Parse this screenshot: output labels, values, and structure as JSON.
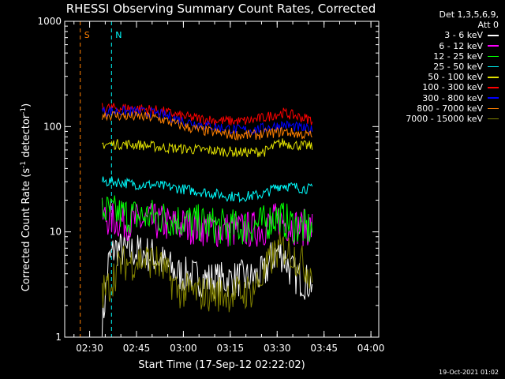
{
  "chart_data": {
    "type": "line",
    "title": "RHESSI Observing Summary Count Rates, Corrected",
    "xlabel": "Start Time (17-Sep-12 02:22:02)",
    "ylabel_main": "Corrected Count Rate (s",
    "ylabel_mid": " detector",
    "ylabel_exp": "-1",
    "ylabel_end": ")",
    "yscale": "log",
    "ylim": [
      1,
      1000
    ],
    "xlim_minutes": [
      142.03,
      242.5
    ],
    "x_ticks": [
      {
        "label": "02:30",
        "minute": 150
      },
      {
        "label": "02:45",
        "minute": 165
      },
      {
        "label": "03:00",
        "minute": 180
      },
      {
        "label": "03:15",
        "minute": 195
      },
      {
        "label": "03:30",
        "minute": 210
      },
      {
        "label": "03:45",
        "minute": 225
      },
      {
        "label": "04:00",
        "minute": 240
      }
    ],
    "y_ticks": [
      {
        "label": "1",
        "value": 1
      },
      {
        "label": "10",
        "value": 10
      },
      {
        "label": "100",
        "value": 100
      },
      {
        "label": "1000",
        "value": 1000
      }
    ],
    "legend_header": [
      "Det 1,3,5,6,9,",
      "Att 0"
    ],
    "series": [
      {
        "name": "3 - 6 keV",
        "color": "#ffffff",
        "points": [
          [
            154,
            1.2
          ],
          [
            156,
            5
          ],
          [
            158,
            7
          ],
          [
            162,
            6.5
          ],
          [
            166,
            6.5
          ],
          [
            170,
            6
          ],
          [
            174,
            5
          ],
          [
            178,
            4
          ],
          [
            182,
            3.8
          ],
          [
            186,
            3.6
          ],
          [
            190,
            3.5
          ],
          [
            194,
            3.5
          ],
          [
            198,
            3.6
          ],
          [
            202,
            3.6
          ],
          [
            206,
            4
          ],
          [
            208,
            5.5
          ],
          [
            210,
            6.5
          ],
          [
            212,
            6
          ],
          [
            214,
            4.5
          ],
          [
            216,
            3.8
          ],
          [
            218,
            3.5
          ],
          [
            220,
            3.3
          ],
          [
            221.5,
            3.3
          ]
        ]
      },
      {
        "name": "6 - 12 keV",
        "color": "#ff00ff",
        "points": [
          [
            154,
            14
          ],
          [
            158,
            13
          ],
          [
            162,
            12.5
          ],
          [
            166,
            12.5
          ],
          [
            170,
            12.5
          ],
          [
            174,
            12
          ],
          [
            178,
            11.5
          ],
          [
            182,
            11.5
          ],
          [
            186,
            11
          ],
          [
            190,
            10.5
          ],
          [
            194,
            10.5
          ],
          [
            198,
            10.5
          ],
          [
            202,
            10.5
          ],
          [
            206,
            11
          ],
          [
            208,
            12
          ],
          [
            210,
            13
          ],
          [
            212,
            12.5
          ],
          [
            214,
            11.5
          ],
          [
            218,
            11
          ],
          [
            221.5,
            11
          ]
        ]
      },
      {
        "name": "12 - 25 keV",
        "color": "#00ff00",
        "points": [
          [
            154,
            16
          ],
          [
            158,
            15
          ],
          [
            162,
            14.5
          ],
          [
            166,
            14
          ],
          [
            170,
            14
          ],
          [
            174,
            13.5
          ],
          [
            178,
            13
          ],
          [
            182,
            12.5
          ],
          [
            186,
            12
          ],
          [
            190,
            11.5
          ],
          [
            194,
            11
          ],
          [
            198,
            11
          ],
          [
            202,
            11.5
          ],
          [
            206,
            12
          ],
          [
            208,
            13
          ],
          [
            210,
            14
          ],
          [
            212,
            13
          ],
          [
            214,
            12
          ],
          [
            218,
            11
          ],
          [
            221.5,
            10.5
          ]
        ]
      },
      {
        "name": "25 - 50 keV",
        "color": "#00ffff",
        "points": [
          [
            154,
            30
          ],
          [
            158,
            30
          ],
          [
            162,
            29
          ],
          [
            166,
            28
          ],
          [
            170,
            28
          ],
          [
            174,
            27
          ],
          [
            178,
            26
          ],
          [
            182,
            25
          ],
          [
            186,
            24
          ],
          [
            190,
            23
          ],
          [
            194,
            22
          ],
          [
            198,
            21.5
          ],
          [
            202,
            22
          ],
          [
            206,
            23
          ],
          [
            208,
            25
          ],
          [
            210,
            27
          ],
          [
            212,
            28
          ],
          [
            214,
            27
          ],
          [
            218,
            26
          ],
          [
            221.5,
            25.5
          ]
        ]
      },
      {
        "name": "50 - 100 keV",
        "color": "#e0e000",
        "points": [
          [
            154,
            68
          ],
          [
            158,
            68
          ],
          [
            162,
            68
          ],
          [
            166,
            67
          ],
          [
            170,
            65
          ],
          [
            174,
            63
          ],
          [
            178,
            62
          ],
          [
            182,
            61
          ],
          [
            186,
            60
          ],
          [
            190,
            59
          ],
          [
            194,
            58
          ],
          [
            198,
            57
          ],
          [
            202,
            57
          ],
          [
            206,
            58
          ],
          [
            208,
            62
          ],
          [
            210,
            68
          ],
          [
            212,
            70
          ],
          [
            214,
            68
          ],
          [
            218,
            66
          ],
          [
            221.5,
            65
          ]
        ]
      },
      {
        "name": "100 - 300 keV",
        "color": "#ff0000",
        "points": [
          [
            154,
            150
          ],
          [
            158,
            150
          ],
          [
            162,
            150
          ],
          [
            166,
            148
          ],
          [
            170,
            145
          ],
          [
            174,
            138
          ],
          [
            178,
            128
          ],
          [
            182,
            122
          ],
          [
            186,
            118
          ],
          [
            190,
            115
          ],
          [
            194,
            113
          ],
          [
            198,
            112
          ],
          [
            202,
            115
          ],
          [
            206,
            122
          ],
          [
            210,
            132
          ],
          [
            212,
            135
          ],
          [
            214,
            130
          ],
          [
            218,
            122
          ],
          [
            221.5,
            115
          ]
        ]
      },
      {
        "name": "300 - 800 keV",
        "color": "#0000ff",
        "points": [
          [
            154,
            140
          ],
          [
            158,
            140
          ],
          [
            162,
            139
          ],
          [
            166,
            138
          ],
          [
            170,
            135
          ],
          [
            174,
            128
          ],
          [
            178,
            118
          ],
          [
            182,
            110
          ],
          [
            186,
            104
          ],
          [
            190,
            100
          ],
          [
            194,
            96
          ],
          [
            198,
            93
          ],
          [
            202,
            93
          ],
          [
            206,
            97
          ],
          [
            210,
            102
          ],
          [
            212,
            104
          ],
          [
            214,
            102
          ],
          [
            218,
            96
          ],
          [
            221.5,
            92
          ]
        ]
      },
      {
        "name": "800 - 7000 keV",
        "color": "#ff8000",
        "points": [
          [
            154,
            130
          ],
          [
            158,
            128
          ],
          [
            162,
            125
          ],
          [
            166,
            124
          ],
          [
            170,
            122
          ],
          [
            174,
            115
          ],
          [
            178,
            105
          ],
          [
            182,
            97
          ],
          [
            186,
            92
          ],
          [
            190,
            88
          ],
          [
            194,
            85
          ],
          [
            198,
            83
          ],
          [
            202,
            83
          ],
          [
            206,
            85
          ],
          [
            210,
            88
          ],
          [
            212,
            90
          ],
          [
            214,
            88
          ],
          [
            218,
            84
          ],
          [
            221.5,
            82
          ]
        ]
      },
      {
        "name": "7000 - 15000 keV",
        "color": "#808000",
        "points": [
          [
            154,
            2.6
          ],
          [
            156,
            3
          ],
          [
            158,
            4
          ],
          [
            160,
            5
          ],
          [
            164,
            5.2
          ],
          [
            166,
            5.5
          ],
          [
            170,
            5.3
          ],
          [
            172,
            5
          ],
          [
            176,
            3.5
          ],
          [
            178,
            2.8
          ],
          [
            182,
            2.7
          ],
          [
            186,
            2.6
          ],
          [
            190,
            2.6
          ],
          [
            194,
            2.6
          ],
          [
            198,
            2.6
          ],
          [
            202,
            2.8
          ],
          [
            206,
            4
          ],
          [
            208,
            5.5
          ],
          [
            210,
            6.5
          ],
          [
            212,
            7
          ],
          [
            214,
            6.5
          ],
          [
            218,
            5
          ],
          [
            221.5,
            4
          ]
        ]
      }
    ],
    "annotations": [
      {
        "label": "S",
        "color": "#ff8000",
        "minute": 147
      },
      {
        "label": "N",
        "color": "#00ffff",
        "minute": 157
      }
    ]
  },
  "footer": {
    "timestamp": "19-Oct-2021 01:02"
  }
}
